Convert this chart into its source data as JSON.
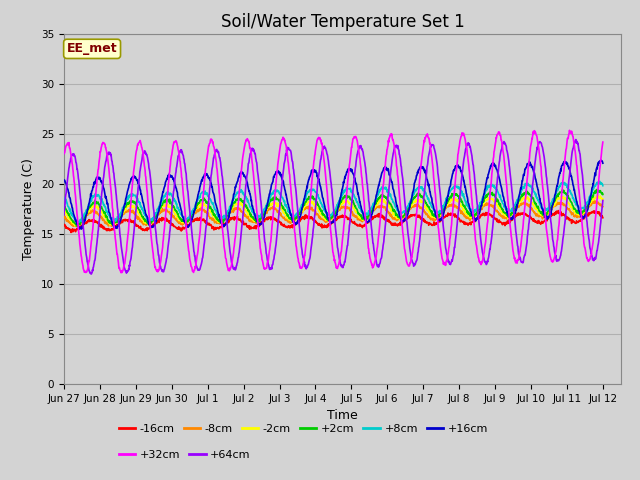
{
  "title": "Soil/Water Temperature Set 1",
  "xlabel": "Time",
  "ylabel": "Temperature (C)",
  "annotation": "EE_met",
  "ylim": [
    0,
    35
  ],
  "xlim": [
    0,
    15.5
  ],
  "fig_width": 6.4,
  "fig_height": 4.8,
  "fig_dpi": 100,
  "background_color": "#d3d3d3",
  "series_order": [
    "-16cm",
    "-8cm",
    "-2cm",
    "+2cm",
    "+8cm",
    "+16cm",
    "+32cm",
    "+64cm"
  ],
  "series": {
    "-16cm": {
      "color": "#ff0000",
      "base": 15.8,
      "amp": 0.5,
      "phase": 0.5,
      "trend": 0.06,
      "amp_trend": 0.0
    },
    "-8cm": {
      "color": "#ff8800",
      "base": 16.5,
      "amp": 0.7,
      "phase": 0.45,
      "trend": 0.065,
      "amp_trend": 0.0
    },
    "-2cm": {
      "color": "#ffff00",
      "base": 16.8,
      "amp": 0.9,
      "phase": 0.4,
      "trend": 0.07,
      "amp_trend": 0.0
    },
    "+2cm": {
      "color": "#00cc00",
      "base": 17.0,
      "amp": 1.1,
      "phase": 0.38,
      "trend": 0.08,
      "amp_trend": 0.0
    },
    "+8cm": {
      "color": "#00cccc",
      "base": 17.5,
      "amp": 1.3,
      "phase": 0.35,
      "trend": 0.09,
      "amp_trend": 0.0
    },
    "+16cm": {
      "color": "#0000cc",
      "base": 18.0,
      "amp": 2.5,
      "phase": 0.3,
      "trend": 0.1,
      "amp_trend": 0.02
    },
    "+32cm": {
      "color": "#ff00ff",
      "base": 17.5,
      "amp": 6.5,
      "phase": 0.15,
      "trend": 0.09,
      "amp_trend": 0.0
    },
    "+64cm": {
      "color": "#9900ff",
      "base": 17.0,
      "amp": 6.0,
      "phase": 0.0,
      "trend": 0.09,
      "amp_trend": 0.0
    }
  },
  "xtick_labels": [
    "Jun 27",
    "Jun 28",
    "Jun 29",
    "Jun 30",
    "Jul 1",
    "Jul 2",
    "Jul 3",
    "Jul 4",
    "Jul 5",
    "Jul 6",
    "Jul 7",
    "Jul 8",
    "Jul 9",
    "Jul 10",
    "Jul 11",
    "Jul 12"
  ],
  "xtick_positions": [
    0,
    1,
    2,
    3,
    4,
    5,
    6,
    7,
    8,
    9,
    10,
    11,
    12,
    13,
    14,
    15
  ],
  "ytick_positions": [
    0,
    5,
    10,
    15,
    20,
    25,
    30,
    35
  ],
  "grid_color": "#b0b0b0",
  "title_fontsize": 12,
  "axis_label_fontsize": 9,
  "tick_fontsize": 7.5,
  "legend_fontsize": 8,
  "legend_ncol_row1": 6,
  "legend_ncol_row2": 2
}
